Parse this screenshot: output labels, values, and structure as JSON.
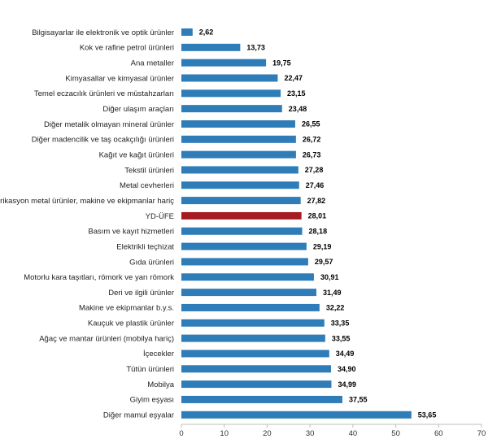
{
  "chart_data": {
    "type": "bar",
    "orientation": "horizontal",
    "title": "",
    "xlabel": "",
    "ylabel": "",
    "xlim": [
      0,
      70
    ],
    "xticks": [
      0,
      10,
      20,
      30,
      40,
      50,
      60,
      70
    ],
    "grid": false,
    "default_color": "#2e7cb8",
    "highlight_color": "#a51b22",
    "highlight_category": "YD-ÜFE",
    "categories": [
      "Bilgisayarlar ile elektronik ve optik ürünler",
      "Kok ve rafine petrol ürünleri",
      "Ana metaller",
      "Kimyasallar ve kimyasal ürünler",
      "Temel eczacılık ürünleri ve müstahzarları",
      "Diğer ulaşım araçları",
      "Diğer metalik olmayan mineral ürünler",
      "Diğer madencilik ve taş ocakçılığı ürünleri",
      "Kağıt ve kağıt ürünleri",
      "Tekstil ürünleri",
      "Metal cevherleri",
      "Fabrikasyon metal ürünler, makine ve ekipmanlar hariç",
      "YD-ÜFE",
      "Basım ve kayıt hizmetleri",
      "Elektrikli teçhizat",
      "Gıda ürünleri",
      "Motorlu kara taşıtları, römork ve yarı römork",
      "Deri ve ilgili ürünler",
      "Makine ve ekipmanlar b.y.s.",
      "Kauçuk ve plastik ürünler",
      "Ağaç ve mantar ürünleri (mobilya hariç)",
      "İçecekler",
      "Tütün ürünleri",
      "Mobilya",
      "Giyim eşyası",
      "Diğer mamul eşyalar"
    ],
    "values": [
      2.62,
      13.73,
      19.75,
      22.47,
      23.15,
      23.48,
      26.55,
      26.72,
      26.73,
      27.28,
      27.46,
      27.82,
      28.01,
      28.18,
      29.19,
      29.57,
      30.91,
      31.49,
      32.22,
      33.35,
      33.55,
      34.49,
      34.9,
      34.99,
      37.55,
      53.65
    ],
    "value_labels": [
      "2,62",
      "13,73",
      "19,75",
      "22,47",
      "23,15",
      "23,48",
      "26,55",
      "26,72",
      "26,73",
      "27,28",
      "27,46",
      "27,82",
      "28,01",
      "28,18",
      "29,19",
      "29,57",
      "30,91",
      "31,49",
      "32,22",
      "33,35",
      "33,55",
      "34,49",
      "34,90",
      "34,99",
      "37,55",
      "53,65"
    ]
  }
}
